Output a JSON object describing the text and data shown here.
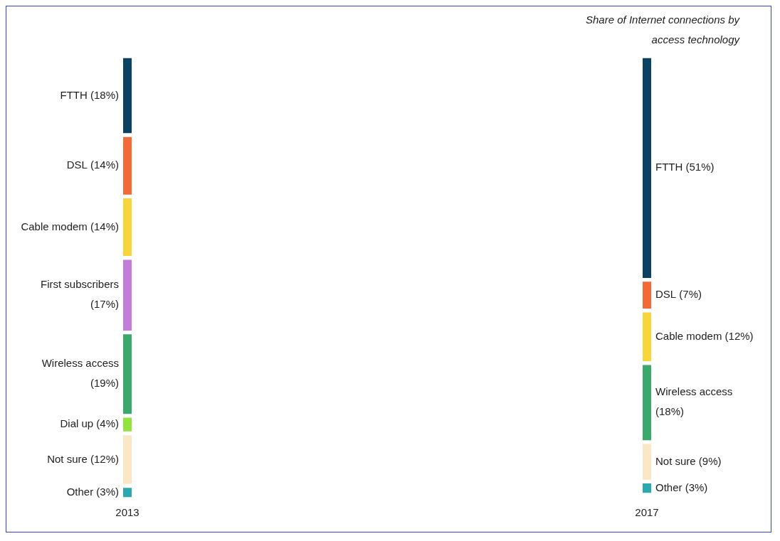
{
  "chart_data": {
    "type": "other",
    "title": "Share of Internet connections by access technology",
    "categories": [
      "FTTH",
      "DSL",
      "Cable modem",
      "First subscribers",
      "Wireless access",
      "Dial up",
      "Not sure",
      "Other"
    ],
    "colors": [
      "#0b4263",
      "#f26a36",
      "#f9d53c",
      "#c27ddb",
      "#3aa96b",
      "#93e33f",
      "#fbe6c6",
      "#2ba8b0"
    ],
    "series": [
      {
        "name": "2013",
        "values": [
          18,
          14,
          14,
          17,
          19,
          4,
          12,
          3
        ],
        "value_labels": [
          "(18%)",
          "(14%)",
          "(14%)",
          "(17%)",
          "(19%)",
          "(4%)",
          "(12%)",
          "(3%)"
        ]
      },
      {
        "name": "2017",
        "values": [
          51,
          7,
          12,
          null,
          18,
          null,
          9,
          3
        ],
        "value_labels": [
          "(51%)",
          "(7%)",
          "(12%)",
          null,
          "(18%)",
          null,
          "(9%)",
          "(3%)"
        ]
      }
    ]
  }
}
